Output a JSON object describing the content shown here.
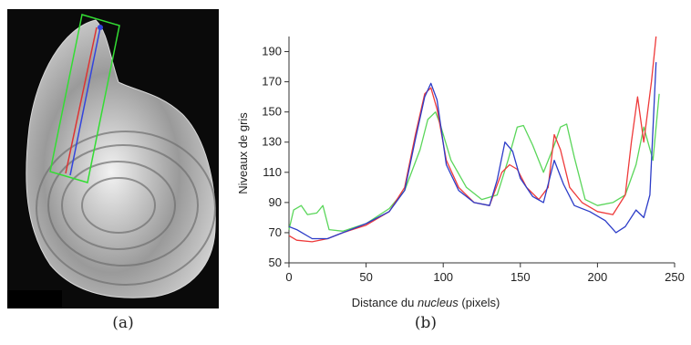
{
  "panels": {
    "a": {
      "caption": "(a)"
    },
    "b": {
      "caption": "(b)"
    }
  },
  "chart_data": {
    "type": "line",
    "title": "",
    "xlabel_main": "Distance du ",
    "xlabel_italic": "nucleus",
    "xlabel_tail": " (pixels)",
    "ylabel": "Niveaux de gris",
    "xlim": [
      0,
      250
    ],
    "ylim": [
      50,
      200
    ],
    "xticks": [
      0,
      50,
      100,
      150,
      200,
      250
    ],
    "yticks": [
      50,
      70,
      90,
      110,
      130,
      150,
      170,
      190
    ],
    "grid": false,
    "legend": "none",
    "series": [
      {
        "color": "#5ad65a",
        "x": [
          0,
          3,
          8,
          12,
          18,
          22,
          26,
          35,
          50,
          65,
          75,
          85,
          90,
          95,
          98,
          105,
          115,
          125,
          135,
          142,
          148,
          152,
          158,
          165,
          172,
          176,
          180,
          185,
          192,
          200,
          210,
          218,
          225,
          230,
          236,
          240
        ],
        "y": [
          72,
          85,
          88,
          82,
          83,
          88,
          72,
          71,
          76,
          86,
          98,
          125,
          145,
          150,
          142,
          118,
          100,
          92,
          95,
          118,
          140,
          141,
          128,
          110,
          128,
          140,
          142,
          120,
          92,
          88,
          90,
          95,
          115,
          140,
          118,
          162
        ]
      },
      {
        "color": "#ee3a3a",
        "x": [
          0,
          5,
          15,
          25,
          35,
          50,
          65,
          75,
          82,
          88,
          92,
          96,
          102,
          110,
          120,
          130,
          138,
          143,
          148,
          154,
          162,
          168,
          172,
          176,
          182,
          190,
          200,
          210,
          218,
          222,
          226,
          230,
          235,
          238
        ],
        "y": [
          68,
          65,
          64,
          66,
          70,
          75,
          84,
          100,
          135,
          162,
          166,
          152,
          118,
          100,
          90,
          88,
          110,
          115,
          112,
          100,
          92,
          100,
          135,
          125,
          100,
          90,
          84,
          82,
          95,
          130,
          160,
          130,
          170,
          200
        ]
      },
      {
        "color": "#2c3cc8",
        "x": [
          0,
          5,
          15,
          25,
          35,
          50,
          65,
          75,
          82,
          88,
          92,
          96,
          102,
          110,
          120,
          130,
          135,
          140,
          145,
          150,
          158,
          165,
          172,
          178,
          185,
          195,
          205,
          212,
          218,
          225,
          230,
          234,
          238
        ],
        "y": [
          74,
          72,
          66,
          66,
          70,
          76,
          84,
          98,
          132,
          160,
          169,
          158,
          115,
          98,
          90,
          88,
          105,
          130,
          124,
          106,
          94,
          90,
          118,
          102,
          88,
          84,
          78,
          70,
          74,
          85,
          80,
          95,
          183
        ]
      }
    ]
  }
}
